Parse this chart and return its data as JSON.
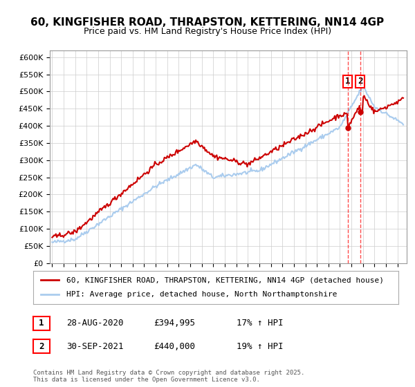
{
  "title_line1": "60, KINGFISHER ROAD, THRAPSTON, KETTERING, NN14 4GP",
  "title_line2": "Price paid vs. HM Land Registry's House Price Index (HPI)",
  "xlabel": "",
  "ylabel": "",
  "bg_color": "#ffffff",
  "grid_color": "#cccccc",
  "red_color": "#cc0000",
  "blue_color": "#aaccee",
  "annotation1": {
    "label": "1",
    "date": "28-AUG-2020",
    "price": "£394,995",
    "pct": "17% ↑ HPI"
  },
  "annotation2": {
    "label": "2",
    "date": "30-SEP-2021",
    "price": "£440,000",
    "pct": "19% ↑ HPI"
  },
  "legend_red": "60, KINGFISHER ROAD, THRAPSTON, KETTERING, NN14 4GP (detached house)",
  "legend_blue": "HPI: Average price, detached house, North Northamptonshire",
  "footer": "Contains HM Land Registry data © Crown copyright and database right 2025.\nThis data is licensed under the Open Government Licence v3.0.",
  "ylim": [
    0,
    620000
  ],
  "yticks": [
    0,
    50000,
    100000,
    150000,
    200000,
    250000,
    300000,
    350000,
    400000,
    450000,
    500000,
    550000,
    600000
  ],
  "x_start_year": 1995,
  "x_end_year": 2025
}
